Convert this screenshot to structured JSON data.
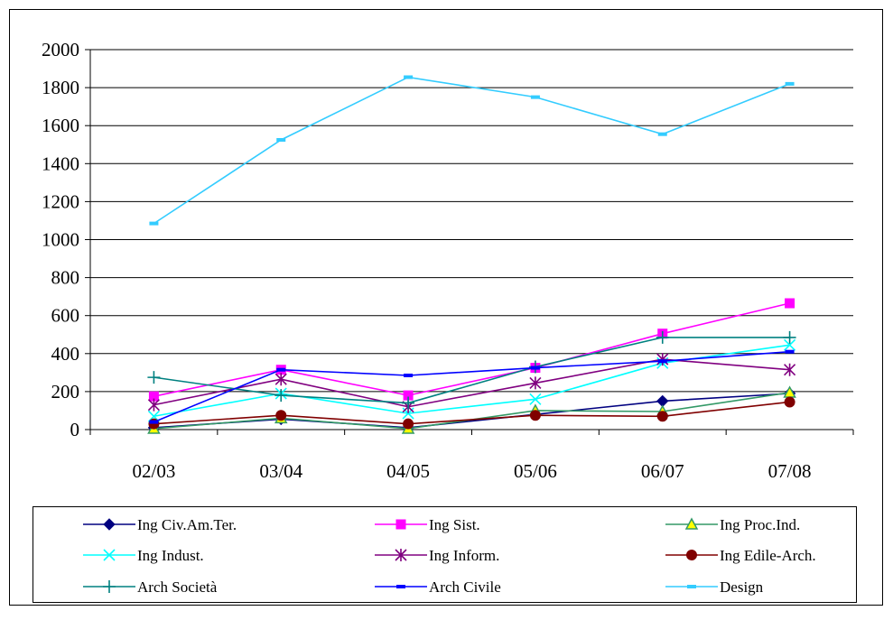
{
  "chart_data": {
    "type": "line",
    "title": "",
    "xlabel": "",
    "ylabel": "",
    "categories": [
      "02/03",
      "03/04",
      "04/05",
      "05/06",
      "06/07",
      "07/08"
    ],
    "ylim": [
      0,
      2000
    ],
    "yticks": [
      0,
      200,
      400,
      600,
      800,
      1000,
      1200,
      1400,
      1600,
      1800,
      2000
    ],
    "grid": "horizontal",
    "legend_position": "bottom",
    "series": [
      {
        "name": "Ing Civ.Am.Ter.",
        "color": "#000080",
        "marker": "diamond",
        "values": [
          10,
          55,
          10,
          80,
          150,
          190
        ]
      },
      {
        "name": "Ing Sist.",
        "color": "#ff00ff",
        "marker": "square",
        "values": [
          175,
          315,
          180,
          325,
          505,
          665
        ]
      },
      {
        "name": "Ing Proc.Ind.",
        "color": "#339966",
        "marker": "triangle",
        "values": [
          5,
          60,
          5,
          100,
          95,
          195
        ]
      },
      {
        "name": "Ing Indust.",
        "color": "#00ffff",
        "marker": "x",
        "values": [
          70,
          190,
          85,
          160,
          350,
          445
        ]
      },
      {
        "name": "Ing Inform.",
        "color": "#800080",
        "marker": "star",
        "values": [
          130,
          265,
          120,
          245,
          370,
          315
        ]
      },
      {
        "name": "Ing Edile-Arch.",
        "color": "#800000",
        "marker": "circle",
        "values": [
          30,
          75,
          30,
          75,
          70,
          145
        ]
      },
      {
        "name": "Arch Società",
        "color": "#008080",
        "marker": "plus",
        "values": [
          275,
          180,
          140,
          330,
          485,
          485
        ]
      },
      {
        "name": "Arch Civile",
        "color": "#0000ff",
        "marker": "dash",
        "values": [
          40,
          315,
          285,
          325,
          360,
          410
        ]
      },
      {
        "name": "Design",
        "color": "#33ccff",
        "marker": "dash",
        "values": [
          1085,
          1525,
          1855,
          1750,
          1555,
          1820
        ]
      }
    ]
  }
}
